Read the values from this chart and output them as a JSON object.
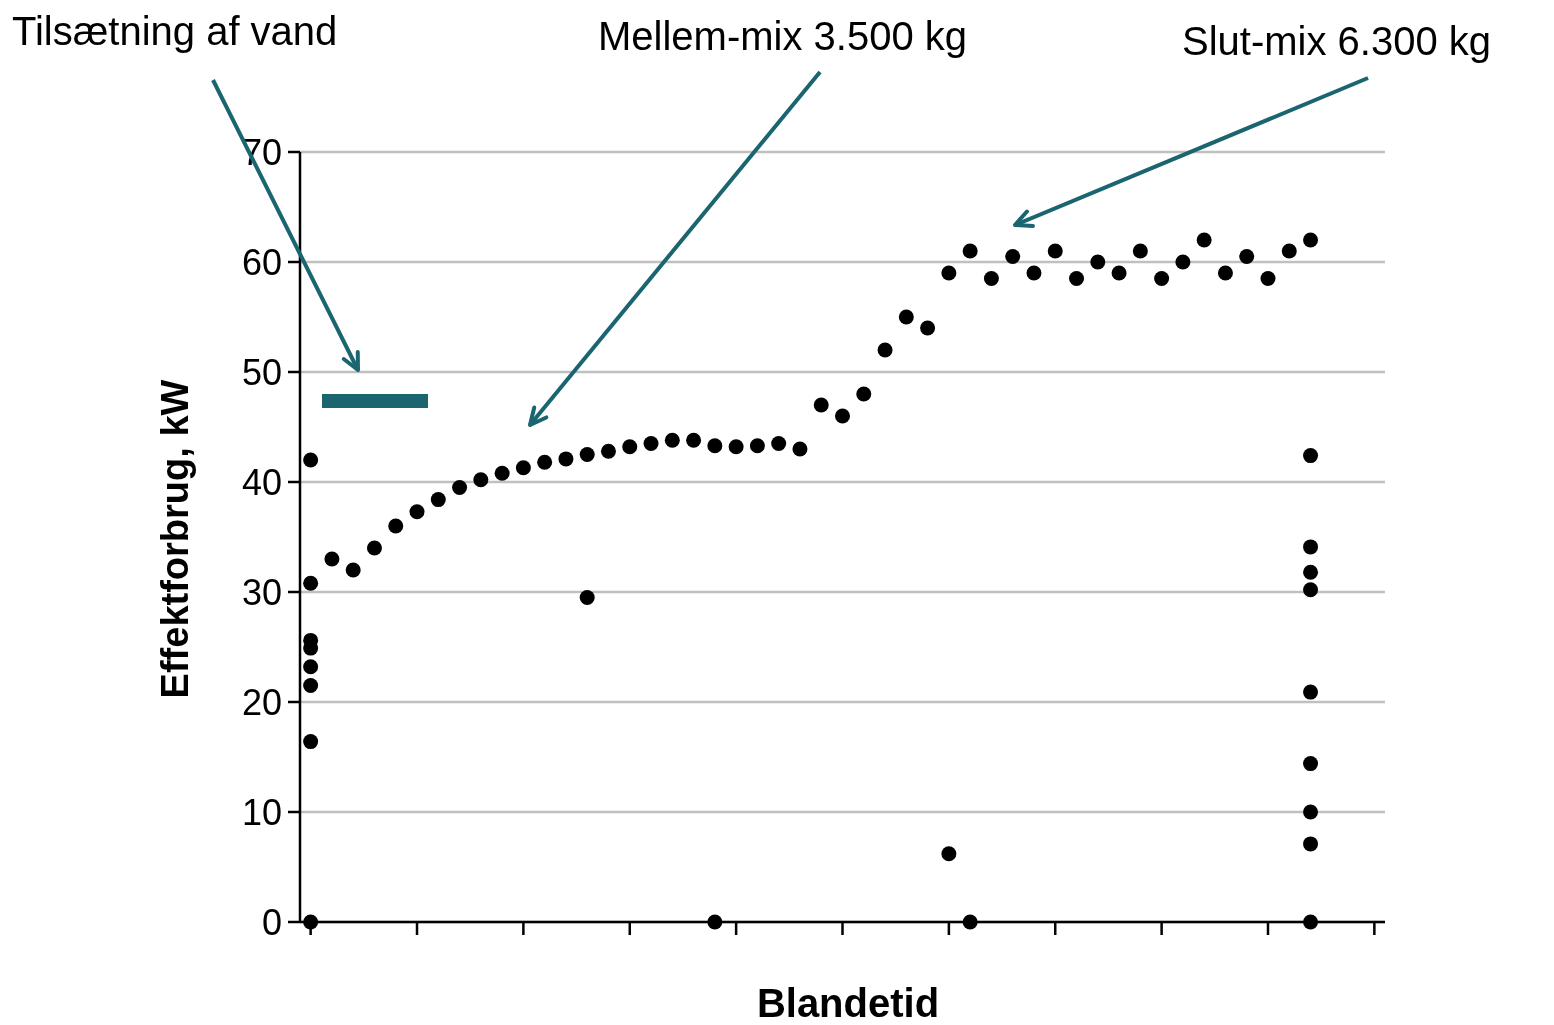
{
  "chart_data": {
    "type": "scatter",
    "xlabel": "Blandetid",
    "ylabel": "Effektforbrug, kW",
    "annotations": [
      "Tilsætning af vand",
      "Mellem-mix 3.500 kg",
      "Slut-mix 6.300 kg"
    ],
    "categories": [
      null,
      null,
      null,
      null,
      null,
      null,
      null,
      null,
      null,
      null,
      null,
      null,
      null,
      null,
      null,
      null,
      null,
      null,
      null,
      null,
      null,
      null,
      null,
      null,
      null,
      null,
      null,
      null,
      null,
      null,
      null,
      null,
      null,
      null,
      null,
      null,
      null,
      null,
      null,
      null,
      null,
      null,
      null,
      null,
      null,
      null,
      null,
      null,
      null,
      null,
      null
    ],
    "ylim": [
      0,
      70
    ],
    "yticks": [
      0,
      10,
      20,
      30,
      40,
      50,
      60,
      70
    ],
    "grid": "y",
    "marker": "circle",
    "series": [
      {
        "color": "#000000",
        "values": [
          42,
          33,
          32,
          34,
          36,
          37.3,
          38.4,
          39.5,
          40.2,
          40.8,
          41.3,
          41.8,
          42.1,
          42.5,
          42.8,
          43.2,
          43.5,
          43.8,
          43.8,
          43.3,
          43.2,
          43.3,
          43.5,
          43,
          47,
          46,
          48,
          52,
          55,
          54,
          59,
          61,
          58.5,
          60.5,
          59,
          61,
          58.5,
          60,
          59,
          61,
          58.5,
          60,
          62,
          59,
          60.5,
          58.5,
          61,
          62,
          null,
          null,
          null
        ]
      },
      {
        "color": "#000000",
        "values": [
          30.8,
          null,
          null,
          null,
          null,
          null,
          null,
          null,
          null,
          null,
          null,
          null,
          null,
          29.5,
          null,
          null,
          null,
          null,
          null,
          0,
          null,
          null,
          null,
          null,
          null,
          null,
          null,
          null,
          null,
          null,
          6.2,
          0,
          null,
          null,
          null,
          null,
          null,
          null,
          null,
          null,
          null,
          null,
          null,
          null,
          null,
          null,
          null,
          42.4,
          null,
          null,
          null
        ]
      },
      {
        "color": "#000000",
        "values": [
          25.6,
          null,
          null,
          null,
          null,
          null,
          null,
          null,
          null,
          null,
          null,
          null,
          null,
          null,
          null,
          null,
          null,
          null,
          null,
          null,
          null,
          null,
          null,
          null,
          null,
          null,
          null,
          null,
          null,
          null,
          null,
          null,
          null,
          null,
          null,
          null,
          null,
          null,
          null,
          null,
          null,
          null,
          null,
          null,
          null,
          null,
          null,
          34.1,
          null,
          null,
          null
        ]
      },
      {
        "color": "#000000",
        "values": [
          24.9,
          null,
          null,
          null,
          null,
          null,
          null,
          null,
          null,
          null,
          null,
          null,
          null,
          null,
          null,
          null,
          null,
          null,
          null,
          null,
          null,
          null,
          null,
          null,
          null,
          null,
          null,
          null,
          null,
          null,
          null,
          null,
          null,
          null,
          null,
          null,
          null,
          null,
          null,
          null,
          null,
          null,
          null,
          null,
          null,
          null,
          null,
          31.8,
          null,
          null,
          null
        ]
      },
      {
        "color": "#000000",
        "values": [
          23.2,
          null,
          null,
          null,
          null,
          null,
          null,
          null,
          null,
          null,
          null,
          null,
          null,
          null,
          null,
          null,
          null,
          null,
          null,
          null,
          null,
          null,
          null,
          null,
          null,
          null,
          null,
          null,
          null,
          null,
          null,
          null,
          null,
          null,
          null,
          null,
          null,
          null,
          null,
          null,
          null,
          null,
          null,
          null,
          null,
          null,
          null,
          30.2,
          null,
          null,
          null
        ]
      },
      {
        "color": "#000000",
        "values": [
          21.5,
          null,
          null,
          null,
          null,
          null,
          null,
          null,
          null,
          null,
          null,
          null,
          null,
          null,
          null,
          null,
          null,
          null,
          null,
          null,
          null,
          null,
          null,
          null,
          null,
          null,
          null,
          null,
          null,
          null,
          null,
          null,
          null,
          null,
          null,
          null,
          null,
          null,
          null,
          null,
          null,
          null,
          null,
          null,
          null,
          null,
          null,
          20.9,
          null,
          null,
          null
        ]
      },
      {
        "color": "#000000",
        "values": [
          16.4,
          null,
          null,
          null,
          null,
          null,
          null,
          null,
          null,
          null,
          null,
          null,
          null,
          null,
          null,
          null,
          null,
          null,
          null,
          null,
          null,
          null,
          null,
          null,
          null,
          null,
          null,
          null,
          null,
          null,
          null,
          null,
          null,
          null,
          null,
          null,
          null,
          null,
          null,
          null,
          null,
          null,
          null,
          null,
          null,
          null,
          null,
          14.4,
          null,
          null,
          null
        ]
      },
      {
        "color": "#000000",
        "values": [
          0,
          null,
          null,
          null,
          null,
          null,
          null,
          null,
          null,
          null,
          null,
          null,
          null,
          null,
          null,
          null,
          null,
          null,
          null,
          null,
          null,
          null,
          null,
          null,
          null,
          null,
          null,
          null,
          null,
          null,
          null,
          null,
          null,
          null,
          null,
          null,
          null,
          null,
          null,
          null,
          null,
          null,
          null,
          null,
          null,
          null,
          null,
          10,
          null,
          null,
          null
        ]
      },
      {
        "color": "#000000",
        "values": [
          null,
          null,
          null,
          null,
          null,
          null,
          null,
          null,
          null,
          null,
          null,
          null,
          null,
          null,
          null,
          null,
          null,
          null,
          null,
          null,
          null,
          null,
          null,
          null,
          null,
          null,
          null,
          null,
          null,
          null,
          null,
          null,
          null,
          null,
          null,
          null,
          null,
          null,
          null,
          null,
          null,
          null,
          null,
          null,
          null,
          null,
          null,
          7.1,
          null,
          null,
          null
        ]
      },
      {
        "color": "#000000",
        "values": [
          null,
          null,
          null,
          null,
          null,
          null,
          null,
          null,
          null,
          null,
          null,
          null,
          null,
          null,
          null,
          null,
          null,
          null,
          null,
          null,
          null,
          null,
          null,
          null,
          null,
          null,
          null,
          null,
          null,
          null,
          null,
          null,
          null,
          null,
          null,
          null,
          null,
          null,
          null,
          null,
          null,
          null,
          null,
          null,
          null,
          null,
          null,
          0,
          null,
          null,
          null
        ]
      }
    ]
  }
}
